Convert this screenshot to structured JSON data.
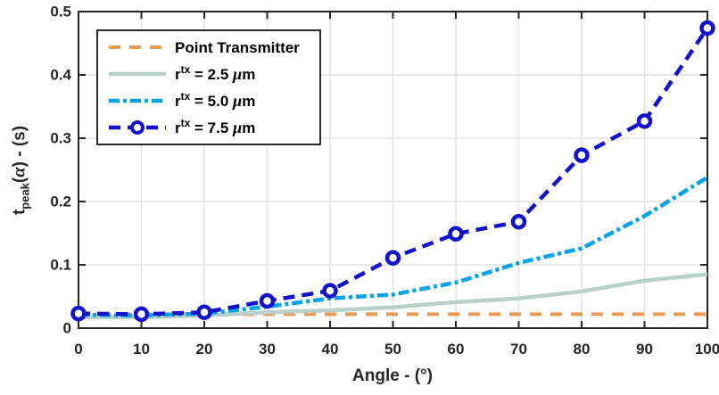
{
  "figure": {
    "background": "#FFFFFF",
    "frame_color": "#262626",
    "grid_color": "#E2E2E2",
    "text_color": "#262626"
  },
  "axes": {
    "x": {
      "label": "Angle - (°)",
      "min": 0,
      "max": 100,
      "ticks": [
        0,
        10,
        20,
        30,
        40,
        50,
        60,
        70,
        80,
        90,
        100
      ],
      "tick_labels": [
        "0",
        "10",
        "20",
        "30",
        "40",
        "50",
        "60",
        "70",
        "80",
        "90",
        "100"
      ]
    },
    "y": {
      "label_parts": [
        {
          "t": "t"
        },
        {
          "t": "peak",
          "style": "sub"
        },
        {
          "t": "("
        },
        {
          "t": "α",
          "style": "greek"
        },
        {
          "t": ") - (s)"
        }
      ],
      "min": 0,
      "max": 0.5,
      "ticks": [
        0,
        0.1,
        0.2,
        0.3,
        0.4,
        0.5
      ],
      "tick_labels": [
        "0",
        "0.1",
        "0.2",
        "0.3",
        "0.4",
        "0.5"
      ]
    }
  },
  "legend": {
    "position": "top-left",
    "items": [
      {
        "series": 0,
        "label_parts": [
          {
            "t": "Point Transmitter"
          }
        ]
      },
      {
        "series": 1,
        "label_parts": [
          {
            "t": "r"
          },
          {
            "t": "tx",
            "style": "sup"
          },
          {
            "t": " = 2.5 "
          },
          {
            "t": "μ",
            "style": "greek"
          },
          {
            "t": "m"
          }
        ]
      },
      {
        "series": 2,
        "label_parts": [
          {
            "t": "r"
          },
          {
            "t": "tx",
            "style": "sup"
          },
          {
            "t": " = 5.0 "
          },
          {
            "t": "μ",
            "style": "greek"
          },
          {
            "t": "m"
          }
        ]
      },
      {
        "series": 3,
        "label_parts": [
          {
            "t": "r"
          },
          {
            "t": "tx",
            "style": "sup"
          },
          {
            "t": " = 7.5 "
          },
          {
            "t": "μ",
            "style": "greek"
          },
          {
            "t": "m"
          }
        ]
      }
    ]
  },
  "chart_data": {
    "type": "line",
    "title": "",
    "xlabel": "Angle - (°)",
    "ylabel": "t_peak(α) - (s)",
    "xlim": [
      0,
      100
    ],
    "ylim": [
      0,
      0.5
    ],
    "grid": true,
    "legend_position": "top-left",
    "x": [
      0,
      10,
      20,
      30,
      40,
      50,
      60,
      70,
      80,
      90,
      100
    ],
    "series": [
      {
        "id": "point-transmitter",
        "name": "Point Transmitter",
        "color": "#E69A55",
        "line": "dashed",
        "dash": "13 10",
        "width": 4,
        "marker": "none",
        "values": [
          0.022,
          0.022,
          0.022,
          0.022,
          0.022,
          0.022,
          0.022,
          0.022,
          0.022,
          0.022,
          0.022
        ]
      },
      {
        "id": "rtx-2-5um",
        "name": "r^tx = 2.5 μm",
        "color": "#B9CFC9",
        "line": "solid",
        "dash": "",
        "width": 4.5,
        "marker": "none",
        "values": [
          0.017,
          0.017,
          0.02,
          0.025,
          0.028,
          0.033,
          0.041,
          0.047,
          0.058,
          0.075,
          0.085
        ]
      },
      {
        "id": "rtx-5-0um",
        "name": "r^tx = 5.0 μm",
        "color": "#00A3E8",
        "line": "dash-dot",
        "dash": "12 4 4 4",
        "width": 4.5,
        "marker": "none",
        "values": [
          0.021,
          0.02,
          0.023,
          0.034,
          0.047,
          0.053,
          0.072,
          0.103,
          0.126,
          0.177,
          0.238
        ]
      },
      {
        "id": "rtx-7-5um",
        "name": "r^tx = 7.5 μm",
        "color": "#1212CB",
        "line": "dashed",
        "dash": "13 8",
        "width": 4.5,
        "marker": "circle",
        "marker_size": 13,
        "values": [
          0.023,
          0.022,
          0.025,
          0.043,
          0.059,
          0.111,
          0.149,
          0.168,
          0.273,
          0.327,
          0.474
        ]
      }
    ]
  }
}
